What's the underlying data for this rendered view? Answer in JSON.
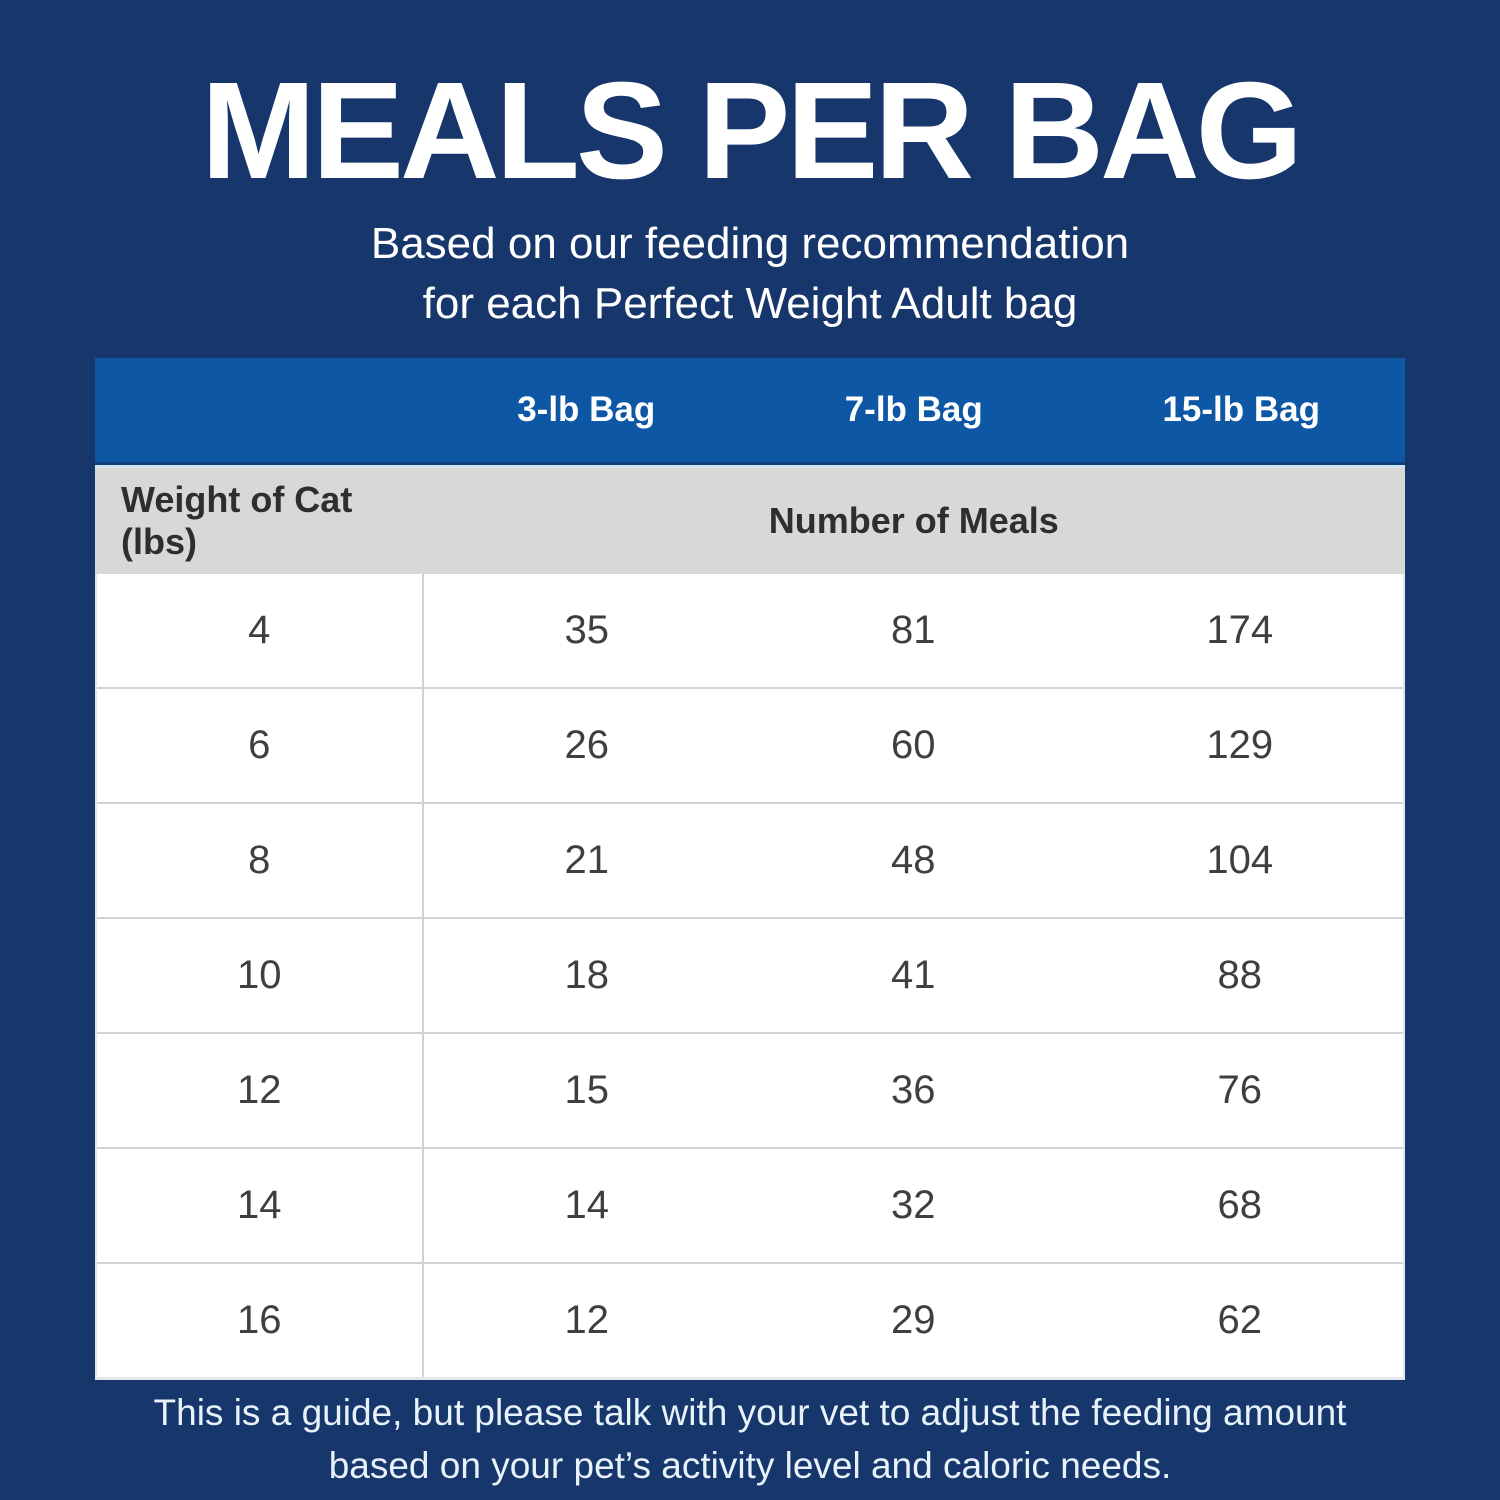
{
  "header": {
    "title": "MEALS PER BAG",
    "subtitle_line1": "Based on our feeding recommendation",
    "subtitle_line2": "for each Perfect Weight Adult bag"
  },
  "table": {
    "bag_headers": [
      "3-lb Bag",
      "7-lb Bag",
      "15-lb Bag"
    ],
    "weight_header": "Weight of Cat (lbs)",
    "meals_header": "Number of Meals",
    "rows": [
      {
        "weight": "4",
        "meals": [
          "35",
          "81",
          "174"
        ]
      },
      {
        "weight": "6",
        "meals": [
          "26",
          "60",
          "129"
        ]
      },
      {
        "weight": "8",
        "meals": [
          "21",
          "48",
          "104"
        ]
      },
      {
        "weight": "10",
        "meals": [
          "18",
          "41",
          "88"
        ]
      },
      {
        "weight": "12",
        "meals": [
          "15",
          "36",
          "76"
        ]
      },
      {
        "weight": "14",
        "meals": [
          "14",
          "32",
          "68"
        ]
      },
      {
        "weight": "16",
        "meals": [
          "12",
          "29",
          "62"
        ]
      }
    ]
  },
  "footer": {
    "line1": "This is a guide, but please talk with your vet to adjust the feeding amount",
    "line2": "based on your pet’s activity level and caloric needs."
  },
  "colors": {
    "background_navy": "#17366b",
    "header_blue": "#0d57a4",
    "subheader_gray": "#d8d8d6",
    "row_divider_gray": "#d2d2d2",
    "cell_text": "#3f3f3f",
    "title_white": "#ffffff",
    "footer_text": "#e8f2fa"
  },
  "chart_data": {
    "type": "table",
    "title": "MEALS PER BAG",
    "subtitle": "Based on our feeding recommendation for each Perfect Weight Adult bag",
    "columns": [
      "Weight of Cat (lbs)",
      "3-lb Bag",
      "7-lb Bag",
      "15-lb Bag"
    ],
    "rows": [
      [
        4,
        35,
        81,
        174
      ],
      [
        6,
        26,
        60,
        129
      ],
      [
        8,
        21,
        48,
        104
      ],
      [
        10,
        18,
        41,
        88
      ],
      [
        12,
        15,
        36,
        76
      ],
      [
        14,
        14,
        32,
        68
      ],
      [
        16,
        12,
        29,
        62
      ]
    ],
    "note": "This is a guide, but please talk with your vet to adjust the feeding amount based on your pet’s activity level and caloric needs.",
    "layout": {
      "header_row_background": "#0d57a4",
      "subheader_row_background": "#d8d8d6",
      "body_background": "#ffffff",
      "page_background": "#17366b",
      "grid": "horizontal dividers between body rows; single vertical divider after first column"
    }
  }
}
